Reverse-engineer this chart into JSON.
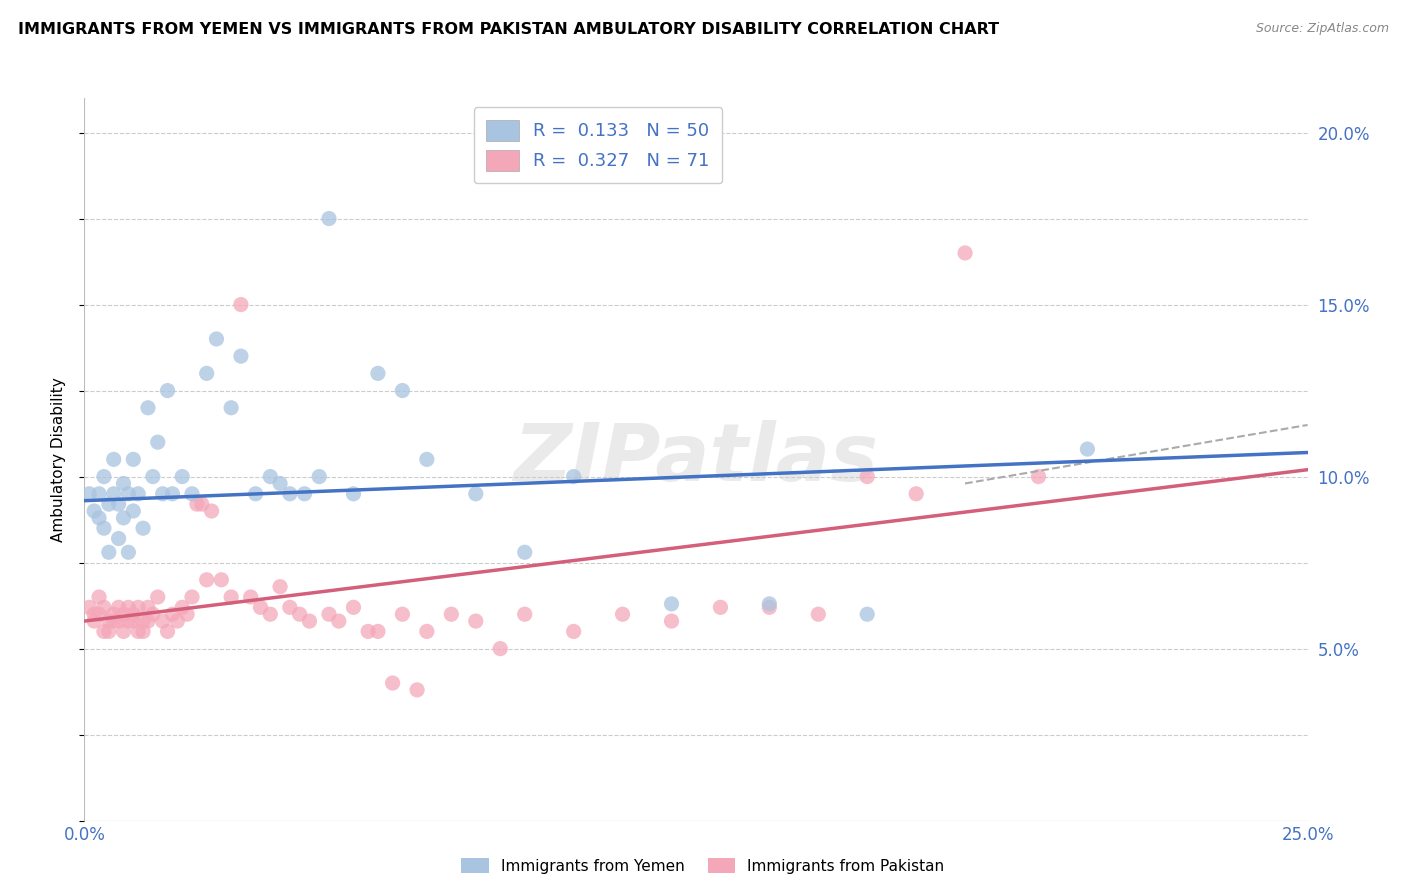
{
  "title": "IMMIGRANTS FROM YEMEN VS IMMIGRANTS FROM PAKISTAN AMBULATORY DISABILITY CORRELATION CHART",
  "source": "Source: ZipAtlas.com",
  "ylabel": "Ambulatory Disability",
  "xlim": [
    0.0,
    0.25
  ],
  "ylim": [
    0.0,
    0.21
  ],
  "xticks": [
    0.0,
    0.05,
    0.1,
    0.15,
    0.2,
    0.25
  ],
  "xticklabels": [
    "0.0%",
    "",
    "",
    "",
    "",
    "25.0%"
  ],
  "yticks": [
    0.0,
    0.05,
    0.1,
    0.15,
    0.2
  ],
  "yticklabels": [
    "",
    "5.0%",
    "10.0%",
    "15.0%",
    "20.0%"
  ],
  "watermark": "ZIPatlas",
  "legend_label1": "Immigrants from Yemen",
  "legend_label2": "Immigrants from Pakistan",
  "R1": "0.133",
  "N1": "50",
  "R2": "0.327",
  "N2": "71",
  "color_yemen": "#a8c4e0",
  "color_pakistan": "#f4a7b9",
  "trendline_color_yemen": "#4472c4",
  "trendline_color_pakistan": "#d45f7a",
  "scatter_yemen": [
    [
      0.001,
      0.095
    ],
    [
      0.002,
      0.09
    ],
    [
      0.003,
      0.095
    ],
    [
      0.003,
      0.088
    ],
    [
      0.004,
      0.1
    ],
    [
      0.004,
      0.085
    ],
    [
      0.005,
      0.092
    ],
    [
      0.005,
      0.078
    ],
    [
      0.006,
      0.105
    ],
    [
      0.006,
      0.095
    ],
    [
      0.007,
      0.092
    ],
    [
      0.007,
      0.082
    ],
    [
      0.008,
      0.098
    ],
    [
      0.008,
      0.088
    ],
    [
      0.009,
      0.095
    ],
    [
      0.009,
      0.078
    ],
    [
      0.01,
      0.105
    ],
    [
      0.01,
      0.09
    ],
    [
      0.011,
      0.095
    ],
    [
      0.012,
      0.085
    ],
    [
      0.013,
      0.12
    ],
    [
      0.014,
      0.1
    ],
    [
      0.015,
      0.11
    ],
    [
      0.016,
      0.095
    ],
    [
      0.017,
      0.125
    ],
    [
      0.018,
      0.095
    ],
    [
      0.02,
      0.1
    ],
    [
      0.022,
      0.095
    ],
    [
      0.025,
      0.13
    ],
    [
      0.027,
      0.14
    ],
    [
      0.03,
      0.12
    ],
    [
      0.032,
      0.135
    ],
    [
      0.035,
      0.095
    ],
    [
      0.038,
      0.1
    ],
    [
      0.04,
      0.098
    ],
    [
      0.042,
      0.095
    ],
    [
      0.045,
      0.095
    ],
    [
      0.048,
      0.1
    ],
    [
      0.05,
      0.175
    ],
    [
      0.055,
      0.095
    ],
    [
      0.06,
      0.13
    ],
    [
      0.065,
      0.125
    ],
    [
      0.07,
      0.105
    ],
    [
      0.08,
      0.095
    ],
    [
      0.09,
      0.078
    ],
    [
      0.1,
      0.1
    ],
    [
      0.12,
      0.063
    ],
    [
      0.14,
      0.063
    ],
    [
      0.16,
      0.06
    ],
    [
      0.205,
      0.108
    ]
  ],
  "scatter_pakistan": [
    [
      0.001,
      0.062
    ],
    [
      0.002,
      0.06
    ],
    [
      0.002,
      0.058
    ],
    [
      0.003,
      0.065
    ],
    [
      0.003,
      0.06
    ],
    [
      0.004,
      0.055
    ],
    [
      0.004,
      0.062
    ],
    [
      0.005,
      0.058
    ],
    [
      0.005,
      0.055
    ],
    [
      0.006,
      0.06
    ],
    [
      0.006,
      0.058
    ],
    [
      0.007,
      0.062
    ],
    [
      0.007,
      0.058
    ],
    [
      0.008,
      0.06
    ],
    [
      0.008,
      0.055
    ],
    [
      0.009,
      0.058
    ],
    [
      0.009,
      0.062
    ],
    [
      0.01,
      0.06
    ],
    [
      0.01,
      0.058
    ],
    [
      0.011,
      0.055
    ],
    [
      0.011,
      0.062
    ],
    [
      0.012,
      0.058
    ],
    [
      0.012,
      0.055
    ],
    [
      0.013,
      0.062
    ],
    [
      0.013,
      0.058
    ],
    [
      0.014,
      0.06
    ],
    [
      0.015,
      0.065
    ],
    [
      0.016,
      0.058
    ],
    [
      0.017,
      0.055
    ],
    [
      0.018,
      0.06
    ],
    [
      0.019,
      0.058
    ],
    [
      0.02,
      0.062
    ],
    [
      0.021,
      0.06
    ],
    [
      0.022,
      0.065
    ],
    [
      0.023,
      0.092
    ],
    [
      0.024,
      0.092
    ],
    [
      0.025,
      0.07
    ],
    [
      0.026,
      0.09
    ],
    [
      0.028,
      0.07
    ],
    [
      0.03,
      0.065
    ],
    [
      0.032,
      0.15
    ],
    [
      0.034,
      0.065
    ],
    [
      0.036,
      0.062
    ],
    [
      0.038,
      0.06
    ],
    [
      0.04,
      0.068
    ],
    [
      0.042,
      0.062
    ],
    [
      0.044,
      0.06
    ],
    [
      0.046,
      0.058
    ],
    [
      0.05,
      0.06
    ],
    [
      0.052,
      0.058
    ],
    [
      0.055,
      0.062
    ],
    [
      0.058,
      0.055
    ],
    [
      0.06,
      0.055
    ],
    [
      0.063,
      0.04
    ],
    [
      0.065,
      0.06
    ],
    [
      0.068,
      0.038
    ],
    [
      0.07,
      0.055
    ],
    [
      0.075,
      0.06
    ],
    [
      0.08,
      0.058
    ],
    [
      0.085,
      0.05
    ],
    [
      0.09,
      0.06
    ],
    [
      0.1,
      0.055
    ],
    [
      0.11,
      0.06
    ],
    [
      0.12,
      0.058
    ],
    [
      0.13,
      0.062
    ],
    [
      0.14,
      0.062
    ],
    [
      0.15,
      0.06
    ],
    [
      0.16,
      0.1
    ],
    [
      0.17,
      0.095
    ],
    [
      0.18,
      0.165
    ],
    [
      0.195,
      0.1
    ]
  ],
  "trendline_yemen": [
    0.0,
    0.25,
    0.093,
    0.107
  ],
  "trendline_pakistan": [
    0.0,
    0.25,
    0.058,
    0.102
  ]
}
